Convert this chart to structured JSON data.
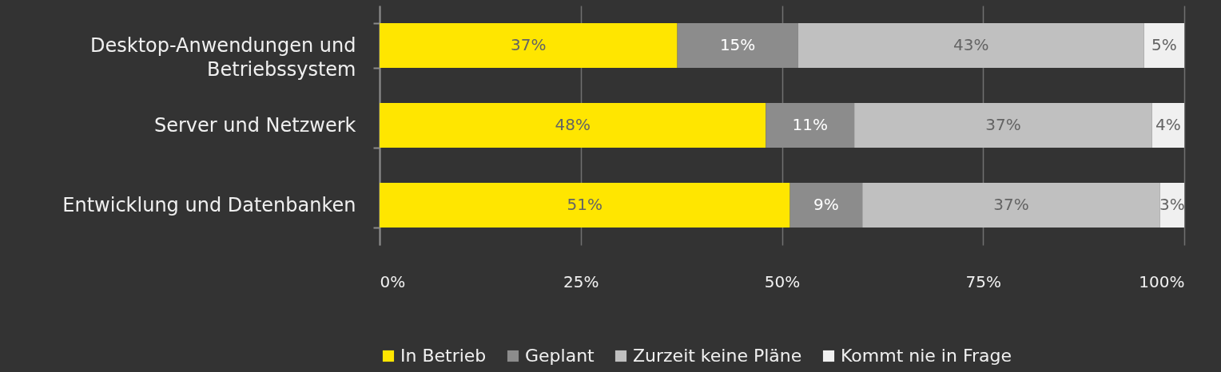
{
  "chart_data": {
    "type": "bar",
    "orientation": "horizontal",
    "stacked": true,
    "categories": [
      "Desktop-Anwendungen und Betriebssystem",
      "Server und Netzwerk",
      "Entwicklung und Datenbanken"
    ],
    "series": [
      {
        "name": "In Betrieb",
        "color": "#ffe600",
        "values": [
          37,
          48,
          51
        ],
        "value_labels": [
          "37%",
          "48%",
          "51%"
        ]
      },
      {
        "name": "Geplant",
        "color": "#8c8c8c",
        "values": [
          15,
          11,
          9
        ],
        "value_labels": [
          "15%",
          "11%",
          "9%"
        ]
      },
      {
        "name": "Zurzeit keine Pläne",
        "color": "#c0c0c0",
        "values": [
          43,
          37,
          37
        ],
        "value_labels": [
          "43%",
          "37%",
          "37%"
        ]
      },
      {
        "name": "Kommt nie in Frage",
        "color": "#f0f0f0",
        "values": [
          5,
          4,
          3
        ],
        "value_labels": [
          "5%",
          "4%",
          "3%"
        ]
      }
    ],
    "xlim": [
      0,
      100
    ],
    "xticks": [
      {
        "value": 0,
        "label": "0%"
      },
      {
        "value": 25,
        "label": "25%"
      },
      {
        "value": 50,
        "label": "50%"
      },
      {
        "value": 75,
        "label": "75%"
      },
      {
        "value": 100,
        "label": "100%"
      }
    ],
    "grid": "x",
    "legend": "bottom"
  }
}
